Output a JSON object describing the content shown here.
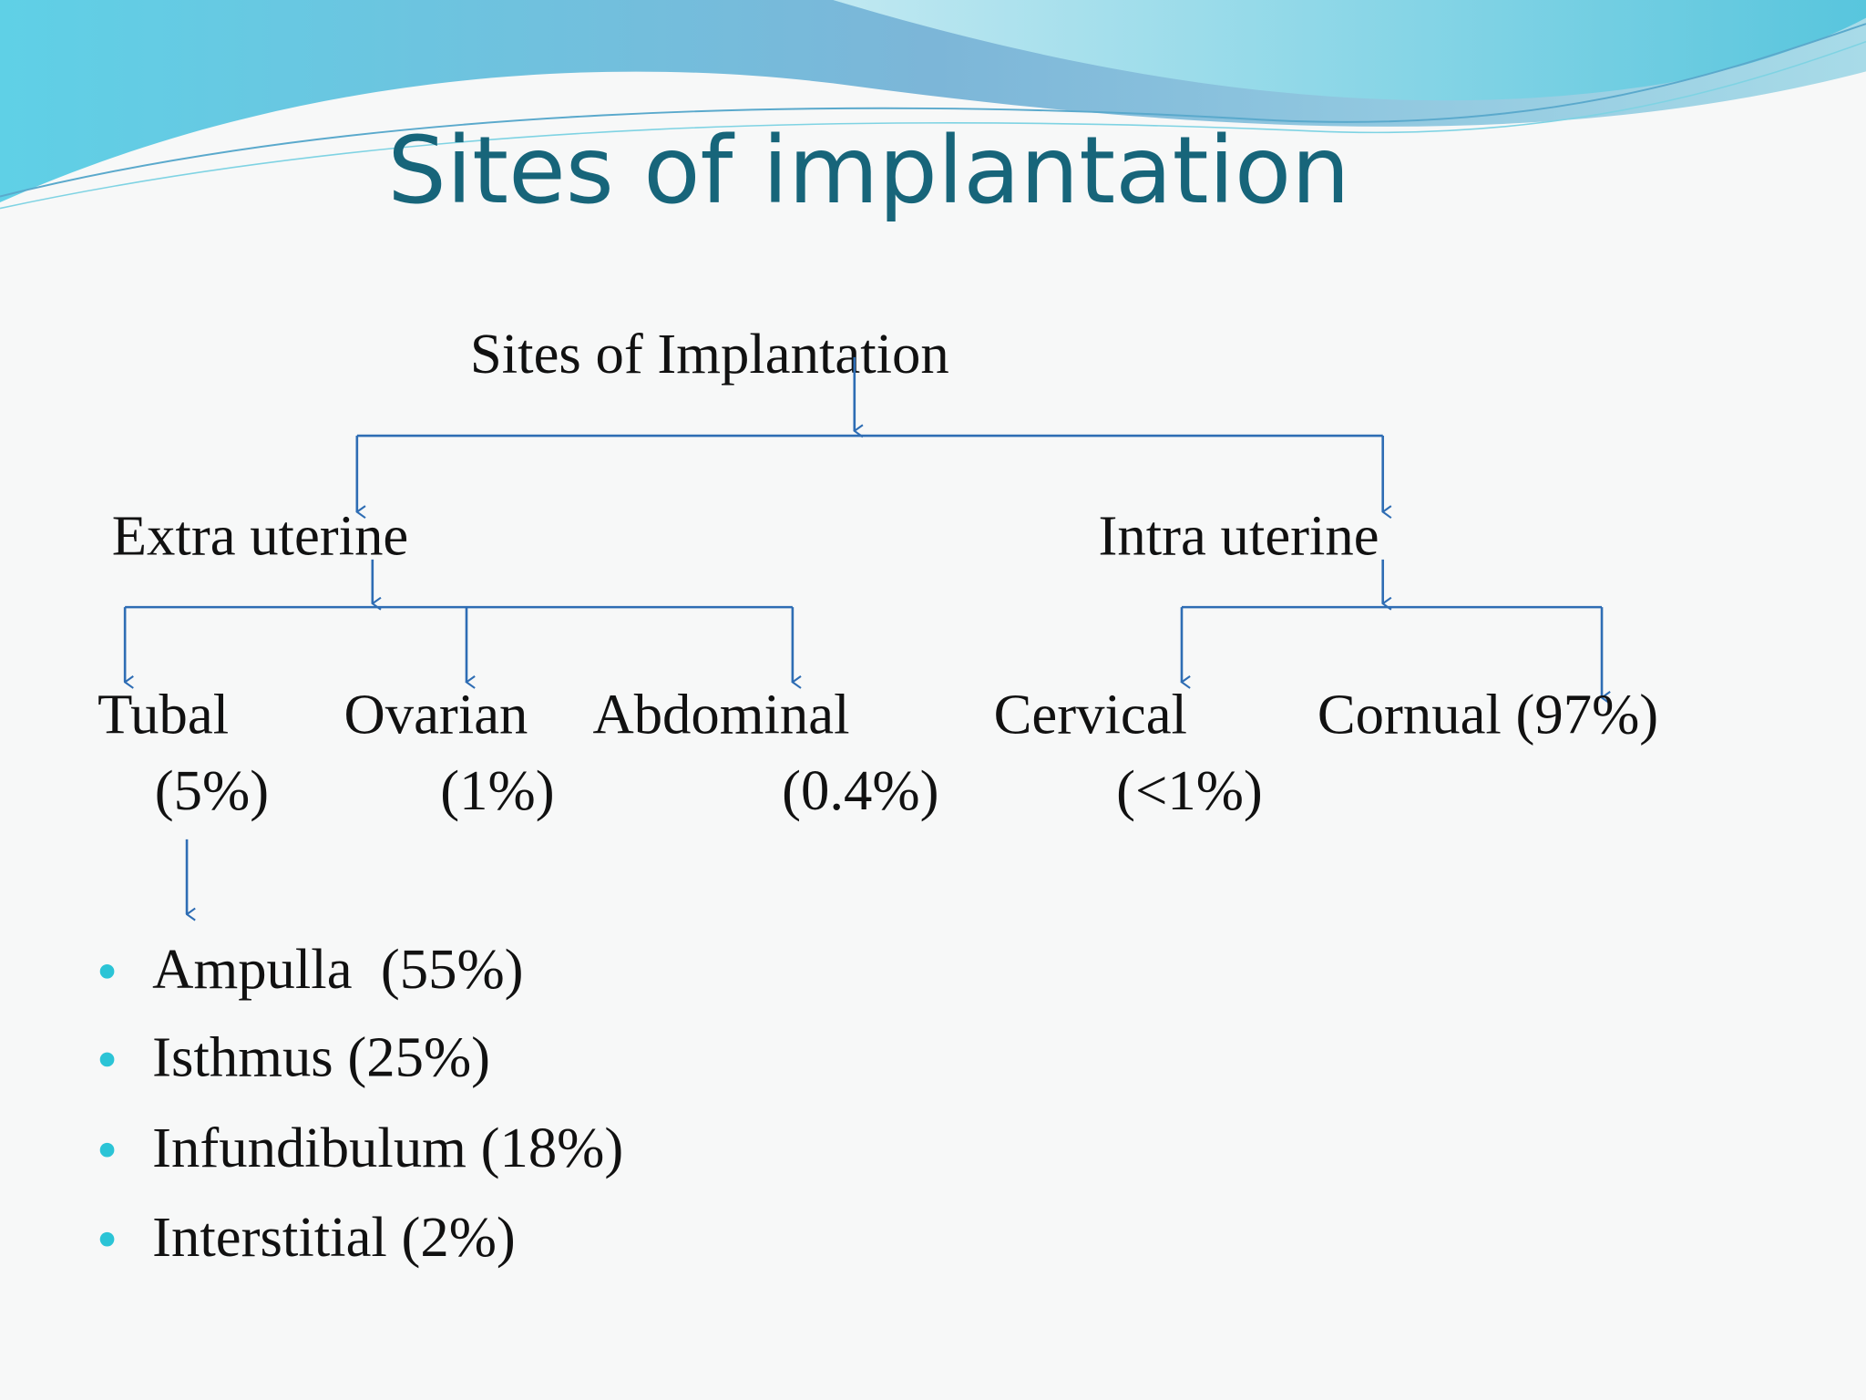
{
  "title": "Sites of implantation",
  "tree": {
    "root": "Sites of Implantation",
    "branches": [
      {
        "label": "Extra uterine",
        "children": [
          {
            "name": "Tubal",
            "share": "(5%)"
          },
          {
            "name": "Ovarian",
            "share": "(1%)"
          },
          {
            "name": "Abdominal",
            "share": "(0.4%)"
          }
        ]
      },
      {
        "label": "Intra uterine",
        "children": [
          {
            "name": "Cervical",
            "share": "(<1%)"
          },
          {
            "name": "Cornual (97%)"
          }
        ]
      }
    ]
  },
  "tubal_sites": [
    "Ampulla  (55%)",
    "Isthmus (25%)",
    "Infundibulum (18%)",
    "Interstitial (2%)"
  ]
}
